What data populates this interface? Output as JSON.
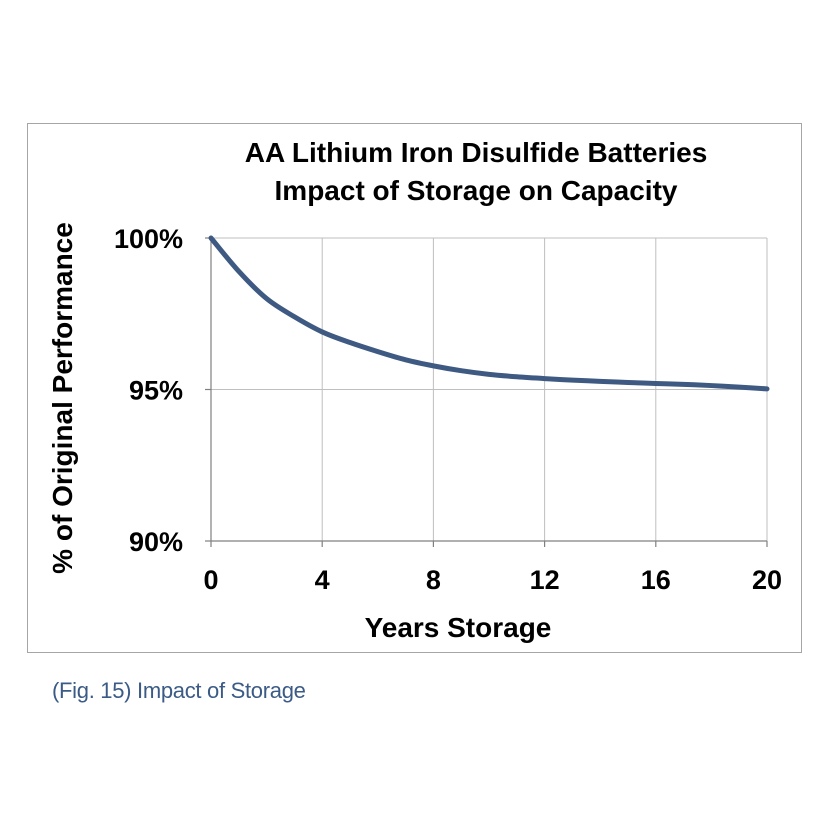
{
  "chart_data": {
    "type": "line",
    "title": [
      "AA Lithium Iron Disulfide Batteries",
      "Impact of Storage on Capacity"
    ],
    "xlabel": "Years Storage",
    "ylabel": "% of Original Performance",
    "xlim": [
      0,
      20
    ],
    "ylim": [
      90,
      100
    ],
    "x_ticks": [
      0,
      4,
      8,
      12,
      16,
      20
    ],
    "x_tick_labels": [
      "0",
      "4",
      "8",
      "12",
      "16",
      "20"
    ],
    "y_ticks": [
      90,
      95,
      100
    ],
    "y_tick_labels": [
      "90%",
      "95%",
      "100%"
    ],
    "grid": true,
    "legend": "none",
    "series": [
      {
        "color": "#3e5a82",
        "x": [
          0,
          1,
          2,
          3,
          4,
          5,
          6,
          7,
          8,
          9,
          10,
          11,
          12,
          13,
          14,
          15,
          16,
          17,
          18,
          19,
          20
        ],
        "y": [
          100,
          98.9,
          98.0,
          97.4,
          96.9,
          96.55,
          96.25,
          95.98,
          95.78,
          95.62,
          95.5,
          95.42,
          95.36,
          95.31,
          95.27,
          95.23,
          95.2,
          95.17,
          95.13,
          95.08,
          95.02
        ]
      }
    ]
  },
  "caption": "(Fig. 15) Impact of Storage"
}
